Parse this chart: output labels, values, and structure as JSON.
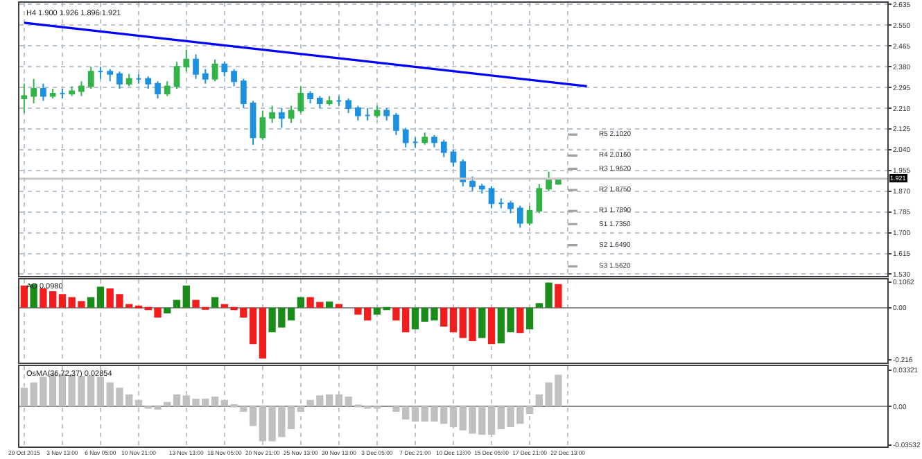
{
  "chart_data": [
    {
      "type": "candlestick",
      "title": "H4 1.900 1.926 1.896 1.921",
      "categories": [
        null,
        null,
        null,
        null,
        null,
        null,
        null,
        null,
        null,
        null,
        null,
        null,
        null,
        null,
        null,
        null,
        null,
        null,
        null,
        null,
        null,
        null,
        null,
        null,
        null,
        null,
        null,
        null,
        null,
        null,
        null,
        null,
        null,
        null,
        null,
        null,
        null,
        null,
        null,
        null,
        null,
        null,
        null,
        null,
        null,
        null,
        null,
        null,
        null,
        null,
        null,
        null,
        null,
        null,
        null,
        null,
        null,
        null,
        null,
        null,
        null,
        null,
        null,
        null,
        null,
        null,
        null,
        null,
        null,
        null,
        null,
        null,
        null,
        null,
        null,
        null,
        null,
        null,
        null,
        null,
        null,
        null,
        null,
        null,
        null,
        null,
        null,
        null,
        null,
        null,
        null
      ],
      "ohlc": [
        [
          2.25,
          2.31,
          2.19,
          2.26
        ],
        [
          2.26,
          2.33,
          2.23,
          2.29
        ],
        [
          2.29,
          2.31,
          2.24,
          2.26
        ],
        [
          2.26,
          2.29,
          2.25,
          2.27
        ],
        [
          2.27,
          2.29,
          2.25,
          2.27
        ],
        [
          2.27,
          2.3,
          2.26,
          2.28
        ],
        [
          2.28,
          2.32,
          2.26,
          2.3
        ],
        [
          2.3,
          2.38,
          2.29,
          2.36
        ],
        [
          2.36,
          2.38,
          2.33,
          2.36
        ],
        [
          2.36,
          2.37,
          2.32,
          2.35
        ],
        [
          2.35,
          2.36,
          2.29,
          2.31
        ],
        [
          2.31,
          2.35,
          2.3,
          2.33
        ],
        [
          2.33,
          2.35,
          2.31,
          2.33
        ],
        [
          2.33,
          2.34,
          2.29,
          2.31
        ],
        [
          2.31,
          2.32,
          2.25,
          2.27
        ],
        [
          2.27,
          2.32,
          2.26,
          2.3
        ],
        [
          2.3,
          2.4,
          2.29,
          2.38
        ],
        [
          2.38,
          2.45,
          2.36,
          2.41
        ],
        [
          2.41,
          2.43,
          2.33,
          2.35
        ],
        [
          2.35,
          2.37,
          2.31,
          2.33
        ],
        [
          2.33,
          2.41,
          2.32,
          2.39
        ],
        [
          2.39,
          2.4,
          2.34,
          2.36
        ],
        [
          2.36,
          2.37,
          2.3,
          2.32
        ],
        [
          2.32,
          2.33,
          2.21,
          2.23
        ],
        [
          2.23,
          2.24,
          2.06,
          2.09
        ],
        [
          2.09,
          2.2,
          2.08,
          2.17
        ],
        [
          2.17,
          2.22,
          2.15,
          2.19
        ],
        [
          2.19,
          2.21,
          2.13,
          2.17
        ],
        [
          2.17,
          2.22,
          2.15,
          2.2
        ],
        [
          2.2,
          2.3,
          2.19,
          2.27
        ],
        [
          2.27,
          2.28,
          2.23,
          2.25
        ],
        [
          2.25,
          2.26,
          2.21,
          2.23
        ],
        [
          2.23,
          2.26,
          2.22,
          2.24
        ],
        [
          2.24,
          2.26,
          2.22,
          2.24
        ],
        [
          2.24,
          2.25,
          2.19,
          2.21
        ],
        [
          2.21,
          2.22,
          2.16,
          2.18
        ],
        [
          2.18,
          2.21,
          2.16,
          2.18
        ],
        [
          2.18,
          2.22,
          2.17,
          2.2
        ],
        [
          2.2,
          2.21,
          2.16,
          2.18
        ],
        [
          2.18,
          2.19,
          2.1,
          2.12
        ],
        [
          2.12,
          2.13,
          2.05,
          2.07
        ],
        [
          2.07,
          2.09,
          2.05,
          2.07
        ],
        [
          2.07,
          2.11,
          2.06,
          2.09
        ],
        [
          2.09,
          2.1,
          2.05,
          2.07
        ],
        [
          2.07,
          2.08,
          2.01,
          2.03
        ],
        [
          2.03,
          2.04,
          1.97,
          1.99
        ],
        [
          1.99,
          2.0,
          1.89,
          1.91
        ],
        [
          1.91,
          1.93,
          1.87,
          1.89
        ],
        [
          1.89,
          1.9,
          1.86,
          1.88
        ],
        [
          1.88,
          1.89,
          1.8,
          1.82
        ],
        [
          1.82,
          1.84,
          1.8,
          1.82
        ],
        [
          1.82,
          1.83,
          1.78,
          1.8
        ],
        [
          1.8,
          1.81,
          1.72,
          1.74
        ],
        [
          1.74,
          1.81,
          1.73,
          1.79
        ],
        [
          1.79,
          1.9,
          1.78,
          1.88
        ],
        [
          1.88,
          1.95,
          1.87,
          1.92
        ],
        [
          1.9,
          1.926,
          1.896,
          1.921
        ],
        null,
        null,
        null,
        null,
        null,
        null,
        null,
        null,
        null,
        null,
        null,
        null,
        null,
        null,
        null,
        null,
        null,
        null,
        null,
        null,
        null,
        null,
        null,
        null,
        null,
        null,
        null,
        null,
        null,
        null,
        null,
        null,
        null,
        null
      ],
      "colors": [
        "#32b34a",
        "#32b34a",
        "#1e90e0",
        "#32b34a",
        "#1e90e0",
        "#32b34a",
        "#32b34a",
        "#32b34a",
        "#1e90e0",
        "#1e90e0",
        "#1e90e0",
        "#32b34a",
        "#1e90e0",
        "#1e90e0",
        "#1e90e0",
        "#32b34a",
        "#32b34a",
        "#32b34a",
        "#1e90e0",
        "#1e90e0",
        "#32b34a",
        "#1e90e0",
        "#1e90e0",
        "#1e90e0",
        "#1e90e0",
        "#32b34a",
        "#32b34a",
        "#1e90e0",
        "#32b34a",
        "#32b34a",
        "#1e90e0",
        "#1e90e0",
        "#32b34a",
        "#1e90e0",
        "#1e90e0",
        "#1e90e0",
        "#1e90e0",
        "#32b34a",
        "#1e90e0",
        "#1e90e0",
        "#1e90e0",
        "#1e90e0",
        "#32b34a",
        "#1e90e0",
        "#1e90e0",
        "#1e90e0",
        "#1e90e0",
        "#1e90e0",
        "#1e90e0",
        "#1e90e0",
        "#1e90e0",
        "#1e90e0",
        "#1e90e0",
        "#32b34a",
        "#32b34a",
        "#32b34a",
        "#32b34a",
        null,
        null,
        null,
        null,
        null,
        null,
        null,
        null,
        null,
        null,
        null,
        null,
        null,
        null,
        null,
        null,
        null,
        null,
        null,
        null,
        null,
        null,
        null,
        null,
        null,
        null,
        null,
        null,
        null,
        null,
        null,
        null,
        null,
        null
      ],
      "series": [
        {
          "type": "line",
          "color": "#0000ff",
          "values": [
            2.56,
            null,
            null,
            null,
            null,
            null,
            null,
            null,
            null,
            null,
            null,
            null,
            null,
            null,
            null,
            null,
            null,
            null,
            null,
            null,
            null,
            null,
            null,
            null,
            null,
            null,
            null,
            null,
            null,
            null,
            null,
            null,
            null,
            null,
            null,
            null,
            null,
            null,
            null,
            null,
            null,
            null,
            null,
            null,
            null,
            null,
            null,
            null,
            null,
            null,
            null,
            null,
            null,
            null,
            null,
            null,
            null,
            null,
            null,
            2.3,
            null,
            null,
            null,
            null,
            null,
            null,
            null,
            null,
            null,
            null,
            null,
            null,
            null,
            null,
            null,
            null,
            null,
            null,
            null,
            null,
            null,
            null,
            null,
            null,
            null,
            null,
            null,
            null,
            null,
            null,
            null
          ]
        },
        {
          "type": "line",
          "name": "R5 2.1020",
          "color": "#a0a0a0",
          "values": [
            null,
            null,
            null,
            null,
            null,
            null,
            null,
            null,
            null,
            null,
            null,
            null,
            null,
            null,
            null,
            null,
            null,
            null,
            null,
            null,
            null,
            null,
            null,
            null,
            null,
            null,
            null,
            null,
            null,
            null,
            null,
            null,
            null,
            null,
            null,
            null,
            null,
            null,
            null,
            null,
            null,
            null,
            null,
            null,
            null,
            null,
            null,
            null,
            null,
            null,
            null,
            null,
            null,
            null,
            null,
            null,
            null,
            2.102,
            2.102,
            null,
            null,
            null,
            null,
            null,
            null,
            null,
            null,
            null,
            null,
            null,
            null,
            null,
            null,
            null,
            null,
            null,
            null,
            null,
            null,
            null,
            null,
            null,
            null,
            null,
            null,
            null,
            null,
            null,
            null,
            null,
            null
          ]
        },
        {
          "type": "line",
          "name": "R4 2.0160",
          "color": "#a0a0a0",
          "values": [
            null,
            null,
            null,
            null,
            null,
            null,
            null,
            null,
            null,
            null,
            null,
            null,
            null,
            null,
            null,
            null,
            null,
            null,
            null,
            null,
            null,
            null,
            null,
            null,
            null,
            null,
            null,
            null,
            null,
            null,
            null,
            null,
            null,
            null,
            null,
            null,
            null,
            null,
            null,
            null,
            null,
            null,
            null,
            null,
            null,
            null,
            null,
            null,
            null,
            null,
            null,
            null,
            null,
            null,
            null,
            null,
            null,
            2.016,
            2.016,
            null,
            null,
            null,
            null,
            null,
            null,
            null,
            null,
            null,
            null,
            null,
            null,
            null,
            null,
            null,
            null,
            null,
            null,
            null,
            null,
            null,
            null,
            null,
            null,
            null,
            null,
            null,
            null,
            null,
            null,
            null,
            null
          ]
        },
        {
          "type": "line",
          "name": "R3 1.9620",
          "color": "#a0a0a0",
          "values": [
            null,
            null,
            null,
            null,
            null,
            null,
            null,
            null,
            null,
            null,
            null,
            null,
            null,
            null,
            null,
            null,
            null,
            null,
            null,
            null,
            null,
            null,
            null,
            null,
            null,
            null,
            null,
            null,
            null,
            null,
            null,
            null,
            null,
            null,
            null,
            null,
            null,
            null,
            null,
            null,
            null,
            null,
            null,
            null,
            null,
            null,
            null,
            null,
            null,
            null,
            null,
            null,
            null,
            null,
            null,
            null,
            null,
            1.962,
            1.962,
            null,
            null,
            null,
            null,
            null,
            null,
            null,
            null,
            null,
            null,
            null,
            null,
            null,
            null,
            null,
            null,
            null,
            null,
            null,
            null,
            null,
            null,
            null,
            null,
            null,
            null,
            null,
            null,
            null,
            null,
            null,
            null
          ]
        },
        {
          "type": "line",
          "name": "R2 1.8750",
          "color": "#a0a0a0",
          "values": [
            null,
            null,
            null,
            null,
            null,
            null,
            null,
            null,
            null,
            null,
            null,
            null,
            null,
            null,
            null,
            null,
            null,
            null,
            null,
            null,
            null,
            null,
            null,
            null,
            null,
            null,
            null,
            null,
            null,
            null,
            null,
            null,
            null,
            null,
            null,
            null,
            null,
            null,
            null,
            null,
            null,
            null,
            null,
            null,
            null,
            null,
            null,
            null,
            null,
            null,
            null,
            null,
            null,
            null,
            null,
            null,
            null,
            1.875,
            1.875,
            null,
            null,
            null,
            null,
            null,
            null,
            null,
            null,
            null,
            null,
            null,
            null,
            null,
            null,
            null,
            null,
            null,
            null,
            null,
            null,
            null,
            null,
            null,
            null,
            null,
            null,
            null,
            null,
            null,
            null,
            null,
            null
          ]
        },
        {
          "type": "line",
          "name": "R1 1.7890",
          "color": "#a0a0a0",
          "values": [
            null,
            null,
            null,
            null,
            null,
            null,
            null,
            null,
            null,
            null,
            null,
            null,
            null,
            null,
            null,
            null,
            null,
            null,
            null,
            null,
            null,
            null,
            null,
            null,
            null,
            null,
            null,
            null,
            null,
            null,
            null,
            null,
            null,
            null,
            null,
            null,
            null,
            null,
            null,
            null,
            null,
            null,
            null,
            null,
            null,
            null,
            null,
            null,
            null,
            null,
            null,
            null,
            null,
            null,
            null,
            null,
            null,
            1.789,
            1.789,
            null,
            null,
            null,
            null,
            null,
            null,
            null,
            null,
            null,
            null,
            null,
            null,
            null,
            null,
            null,
            null,
            null,
            null,
            null,
            null,
            null,
            null,
            null,
            null,
            null,
            null,
            null,
            null,
            null,
            null,
            null,
            null
          ]
        },
        {
          "type": "line",
          "name": "S1 1.7350",
          "color": "#a0a0a0",
          "values": [
            null,
            null,
            null,
            null,
            null,
            null,
            null,
            null,
            null,
            null,
            null,
            null,
            null,
            null,
            null,
            null,
            null,
            null,
            null,
            null,
            null,
            null,
            null,
            null,
            null,
            null,
            null,
            null,
            null,
            null,
            null,
            null,
            null,
            null,
            null,
            null,
            null,
            null,
            null,
            null,
            null,
            null,
            null,
            null,
            null,
            null,
            null,
            null,
            null,
            null,
            null,
            null,
            null,
            null,
            null,
            null,
            null,
            1.735,
            1.735,
            null,
            null,
            null,
            null,
            null,
            null,
            null,
            null,
            null,
            null,
            null,
            null,
            null,
            null,
            null,
            null,
            null,
            null,
            null,
            null,
            null,
            null,
            null,
            null,
            null,
            null,
            null,
            null,
            null,
            null,
            null,
            null
          ]
        },
        {
          "type": "line",
          "name": "S2 1.6490",
          "color": "#a0a0a0",
          "values": [
            null,
            null,
            null,
            null,
            null,
            null,
            null,
            null,
            null,
            null,
            null,
            null,
            null,
            null,
            null,
            null,
            null,
            null,
            null,
            null,
            null,
            null,
            null,
            null,
            null,
            null,
            null,
            null,
            null,
            null,
            null,
            null,
            null,
            null,
            null,
            null,
            null,
            null,
            null,
            null,
            null,
            null,
            null,
            null,
            null,
            null,
            null,
            null,
            null,
            null,
            null,
            null,
            null,
            null,
            null,
            null,
            null,
            1.649,
            1.649,
            null,
            null,
            null,
            null,
            null,
            null,
            null,
            null,
            null,
            null,
            null,
            null,
            null,
            null,
            null,
            null,
            null,
            null,
            null,
            null,
            null,
            null,
            null,
            null,
            null,
            null,
            null,
            null,
            null,
            null,
            null,
            null
          ]
        },
        {
          "type": "line",
          "name": "S3 1.5620",
          "color": "#a0a0a0",
          "values": [
            null,
            null,
            null,
            null,
            null,
            null,
            null,
            null,
            null,
            null,
            null,
            null,
            null,
            null,
            null,
            null,
            null,
            null,
            null,
            null,
            null,
            null,
            null,
            null,
            null,
            null,
            null,
            null,
            null,
            null,
            null,
            null,
            null,
            null,
            null,
            null,
            null,
            null,
            null,
            null,
            null,
            null,
            null,
            null,
            null,
            null,
            null,
            null,
            null,
            null,
            null,
            null,
            null,
            null,
            null,
            null,
            null,
            1.562,
            1.562,
            null,
            null,
            null,
            null,
            null,
            null,
            null,
            null,
            null,
            null,
            null,
            null,
            null,
            null,
            null,
            null,
            null,
            null,
            null,
            null,
            null,
            null,
            null,
            null,
            null,
            null,
            null,
            null,
            null,
            null,
            null,
            null
          ]
        }
      ],
      "ref_lines": [
        {
          "axis": "y",
          "value": 1.921,
          "label": "1.921",
          "color": "#c8c8c8"
        }
      ],
      "ylim": [
        1.522,
        2.642
      ],
      "yticks": [
        2.635,
        {
          "value": 2.55,
          "label": "2.550"
        },
        2.465,
        {
          "value": 2.38,
          "label": "2.380"
        },
        2.295,
        {
          "value": 2.21,
          "label": "2.210"
        },
        2.125,
        {
          "value": 2.04,
          "label": "2.040"
        },
        1.955,
        {
          "value": 1.87,
          "label": "1.870"
        },
        1.785,
        {
          "value": 1.7,
          "label": "1.700"
        },
        1.615,
        {
          "value": 1.53,
          "label": "1.530"
        }
      ],
      "tick_labels": "y",
      "grid": true
    },
    {
      "type": "bar",
      "title": "AO 0.0980",
      "categories": [
        null,
        null,
        null,
        null,
        null,
        null,
        null,
        null,
        null,
        null,
        null,
        null,
        null,
        null,
        null,
        null,
        null,
        null,
        null,
        null,
        null,
        null,
        null,
        null,
        null,
        null,
        null,
        null,
        null,
        null,
        null,
        null,
        null,
        null,
        null,
        null,
        null,
        null,
        null,
        null,
        null,
        null,
        null,
        null,
        null,
        null,
        null,
        null,
        null,
        null,
        null,
        null,
        null,
        null,
        null,
        null,
        null,
        null,
        null,
        null,
        null,
        null,
        null,
        null,
        null,
        null,
        null,
        null,
        null,
        null,
        null,
        null,
        null,
        null,
        null,
        null,
        null,
        null,
        null,
        null,
        null,
        null,
        null,
        null,
        null,
        null,
        null,
        null,
        null,
        null,
        null
      ],
      "values": [
        0.092,
        0.097,
        0.08,
        0.068,
        0.056,
        0.044,
        0.027,
        0.044,
        0.087,
        0.08,
        0.056,
        0.015,
        0.007,
        -0.01,
        -0.041,
        -0.024,
        0.032,
        0.092,
        0.032,
        -0.005,
        0.044,
        0.015,
        -0.01,
        -0.041,
        -0.151,
        -0.211,
        -0.102,
        -0.083,
        -0.053,
        0.044,
        0.044,
        0.024,
        0.026,
        0.015,
        0.0,
        -0.029,
        -0.053,
        -0.029,
        -0.01,
        -0.053,
        -0.102,
        -0.09,
        -0.058,
        -0.053,
        -0.078,
        -0.102,
        -0.126,
        -0.139,
        -0.126,
        -0.151,
        -0.148,
        -0.102,
        -0.105,
        -0.09,
        0.019,
        0.104,
        0.098,
        null,
        null,
        null,
        null,
        null,
        null,
        null,
        null,
        null,
        null,
        null,
        null,
        null,
        null,
        null,
        null,
        null,
        null,
        null,
        null,
        null,
        null,
        null,
        null,
        null,
        null,
        null,
        null,
        null,
        null,
        null,
        null,
        null,
        null
      ],
      "colors": [
        "#f21d1d",
        "#1a8c1a",
        "#f21d1d",
        "#f21d1d",
        "#f21d1d",
        "#f21d1d",
        "#f21d1d",
        "#1a8c1a",
        "#1a8c1a",
        "#f21d1d",
        "#f21d1d",
        "#f21d1d",
        "#f21d1d",
        "#f21d1d",
        "#f21d1d",
        "#1a8c1a",
        "#1a8c1a",
        "#1a8c1a",
        "#f21d1d",
        "#f21d1d",
        "#1a8c1a",
        "#f21d1d",
        "#f21d1d",
        "#f21d1d",
        "#f21d1d",
        "#f21d1d",
        "#1a8c1a",
        "#1a8c1a",
        "#1a8c1a",
        "#1a8c1a",
        "#f21d1d",
        "#f21d1d",
        "#1a8c1a",
        "#f21d1d",
        "#f21d1d",
        "#f21d1d",
        "#f21d1d",
        "#1a8c1a",
        "#1a8c1a",
        "#f21d1d",
        "#f21d1d",
        "#1a8c1a",
        "#1a8c1a",
        "#1a8c1a",
        "#f21d1d",
        "#f21d1d",
        "#f21d1d",
        "#f21d1d",
        "#1a8c1a",
        "#f21d1d",
        "#1a8c1a",
        "#1a8c1a",
        "#f21d1d",
        "#1a8c1a",
        "#1a8c1a",
        "#1a8c1a",
        "#f21d1d",
        null,
        null,
        null,
        null,
        null,
        null,
        null,
        null,
        null,
        null,
        null,
        null,
        null,
        null,
        null,
        null,
        null,
        null,
        null,
        null,
        null,
        null,
        null,
        null,
        null,
        null,
        null,
        null,
        null,
        null,
        null,
        null,
        null,
        null
      ],
      "ylim": [
        -0.228,
        0.118
      ],
      "yticks": [
        0.1062,
        {
          "value": 0,
          "label": "0.00"
        },
        -0.216
      ],
      "tick_labels": "y",
      "grid": "x"
    },
    {
      "type": "bar",
      "title": "OsMA(36,72,37) 0.02854",
      "categories": [
        "29 Oct 2015",
        null,
        null,
        null,
        "3 Nov 13:00",
        null,
        null,
        null,
        "6 Nov 05:00",
        null,
        null,
        null,
        "10 Nov 21:00",
        null,
        null,
        null,
        null,
        "13 Nov 13:00",
        null,
        null,
        null,
        "18 Nov 05:00",
        null,
        null,
        null,
        "20 Nov 21:00",
        null,
        null,
        null,
        "25 Nov 13:00",
        null,
        null,
        null,
        "30 Nov 13:00",
        null,
        null,
        null,
        "3 Dec 05:00",
        null,
        null,
        null,
        "7 Dec 21:00",
        null,
        null,
        null,
        "10 Dec 13:00",
        null,
        null,
        null,
        "15 Dec 05:00",
        null,
        null,
        null,
        "17 Dec 21:00",
        null,
        null,
        null,
        "22 Dec 13:00",
        null,
        null,
        null,
        null,
        null,
        null,
        null,
        null,
        null,
        null,
        null,
        null,
        null,
        null,
        null,
        null,
        null,
        null,
        null,
        null,
        null,
        null,
        null,
        null,
        null,
        null,
        null,
        null,
        null,
        null,
        null,
        null,
        null
      ],
      "values": [
        0.017,
        0.022,
        0.027,
        0.03,
        0.03,
        0.029,
        0.028,
        0.028,
        0.027,
        0.022,
        0.017,
        0.011,
        0.006,
        -0.001,
        -0.003,
        0.004,
        0.011,
        0.01,
        0.007,
        0.007,
        0.009,
        0.006,
        0.002,
        -0.005,
        -0.018,
        -0.032,
        -0.032,
        -0.028,
        -0.021,
        -0.005,
        0.006,
        0.01,
        0.011,
        0.011,
        0.009,
        0.001,
        -0.001,
        -0.001,
        0.0,
        -0.005,
        -0.012,
        -0.014,
        -0.014,
        -0.014,
        -0.016,
        -0.019,
        -0.022,
        -0.025,
        -0.026,
        -0.026,
        -0.021,
        -0.019,
        -0.016,
        -0.007,
        0.011,
        0.022,
        0.029,
        null,
        null,
        null,
        null,
        null,
        null,
        null,
        null,
        null,
        null,
        null,
        null,
        null,
        null,
        null,
        null,
        null,
        null,
        null,
        null,
        null,
        null,
        null,
        null,
        null,
        null,
        null,
        null,
        null,
        null,
        null,
        null,
        null,
        null
      ],
      "color": "#c0c0c0",
      "ylim": [
        -0.0368,
        0.0372
      ],
      "yticks": [
        0.03321,
        {
          "value": 0,
          "label": "0.00"
        },
        -0.03532
      ],
      "grid": "x"
    }
  ]
}
